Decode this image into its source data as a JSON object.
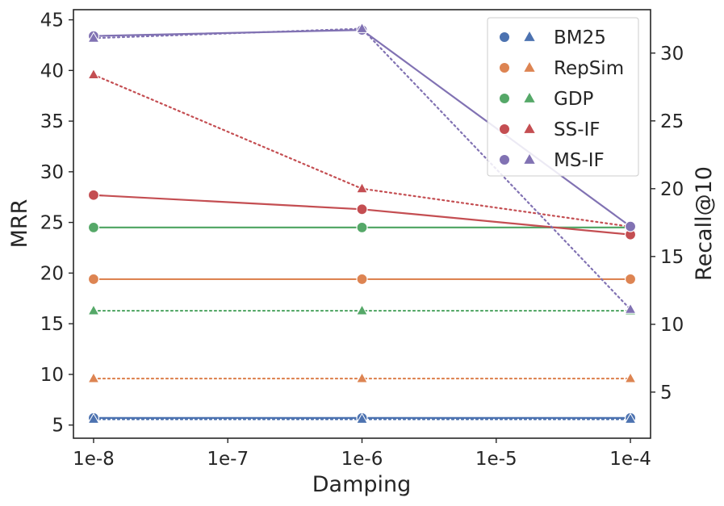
{
  "chart_data": {
    "type": "line",
    "xlabel": "Damping",
    "ylabel_left": "MRR",
    "ylabel_right": "Recall@10",
    "x_ticks": [
      "1e-8",
      "1e-7",
      "1e-6",
      "1e-5",
      "1e-4"
    ],
    "x_log10": [
      -8,
      -7,
      -6,
      -5,
      -4
    ],
    "x": [
      -8,
      -6,
      -4
    ],
    "xlim": [
      -8.15,
      -3.85
    ],
    "ylim_left": [
      3.7,
      46
    ],
    "ylim_right": [
      1.6,
      33.2
    ],
    "yticks_left": [
      5,
      10,
      15,
      20,
      25,
      30,
      35,
      40,
      45
    ],
    "yticks_right": [
      5,
      10,
      15,
      20,
      25,
      30
    ],
    "legend_position": "top-right",
    "series": [
      {
        "name": "BM25",
        "color": "#4c72b0",
        "mrr": [
          5.7,
          5.7,
          5.7
        ],
        "recall": [
          3.0,
          3.0,
          3.0
        ]
      },
      {
        "name": "RepSim",
        "color": "#dd8452",
        "mrr": [
          19.4,
          19.4,
          19.4
        ],
        "recall": [
          6.0,
          6.0,
          6.0
        ]
      },
      {
        "name": "GDP",
        "color": "#55a868",
        "mrr": [
          24.5,
          24.5,
          24.5
        ],
        "recall": [
          11.0,
          11.0,
          11.0
        ]
      },
      {
        "name": "SS-IF",
        "color": "#c44e52",
        "mrr": [
          27.7,
          26.3,
          23.8
        ],
        "recall": [
          28.4,
          20.0,
          17.2
        ]
      },
      {
        "name": "MS-IF",
        "color": "#8172b3",
        "mrr": [
          43.4,
          44.0,
          24.6
        ],
        "recall": [
          31.1,
          31.8,
          11.1
        ]
      }
    ]
  }
}
